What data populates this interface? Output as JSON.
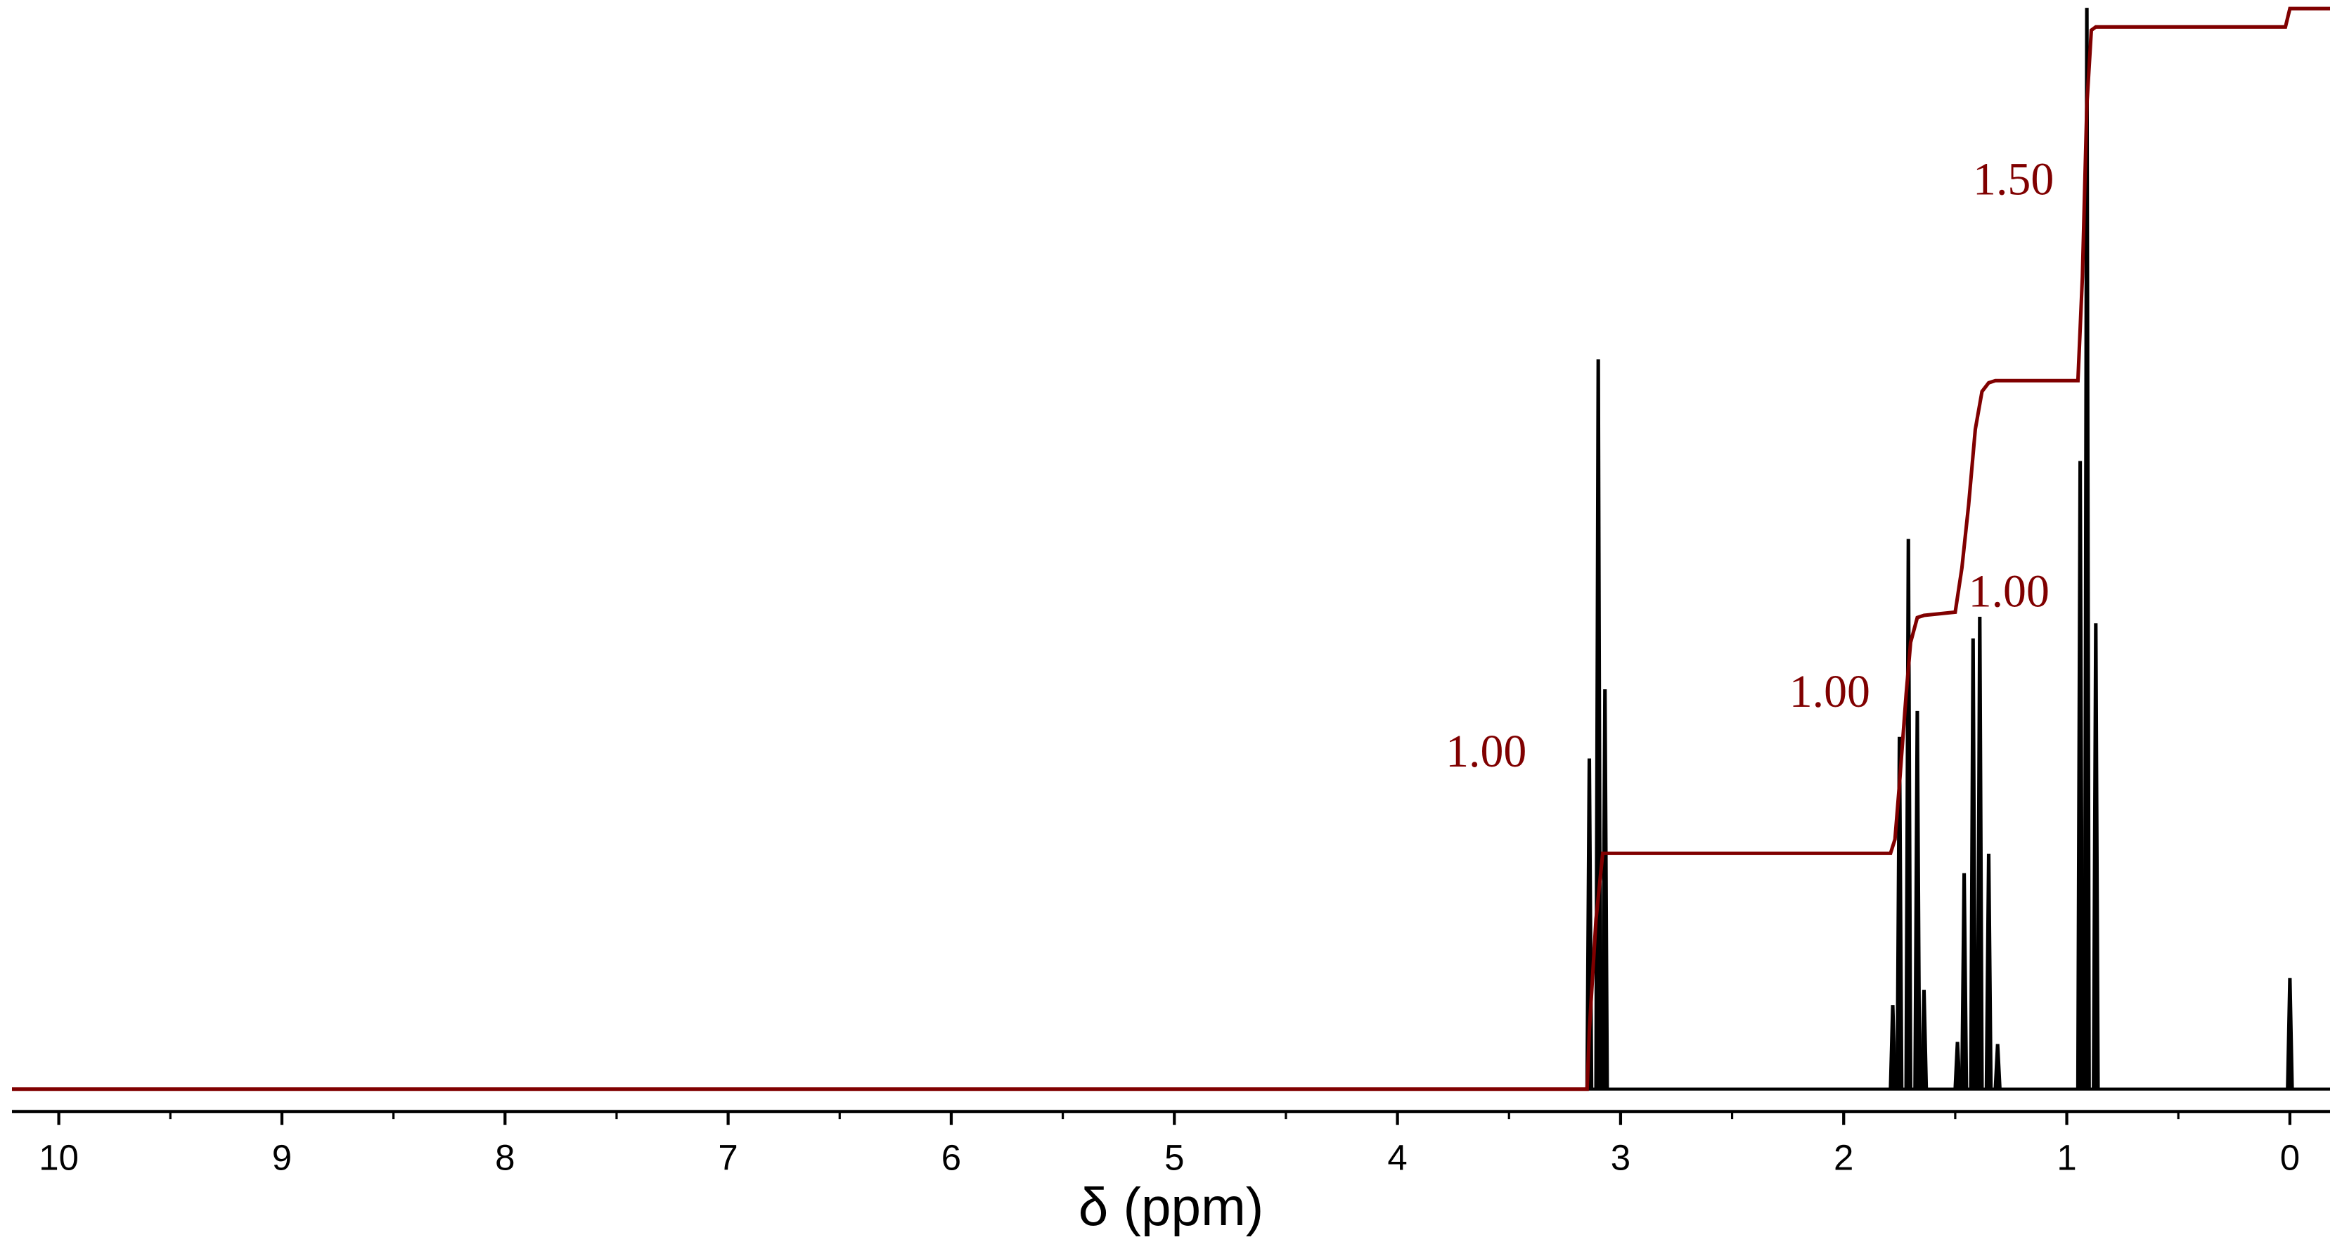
{
  "chart_data": {
    "type": "nmr",
    "xlabel": "δ (ppm)",
    "xlim": [
      10.21,
      -0.18
    ],
    "xticks": [
      10,
      9,
      8,
      7,
      6,
      5,
      4,
      3,
      2,
      1,
      0
    ],
    "xminorticks": [
      9.5,
      8.5,
      7.5,
      6.5,
      5.5,
      4.5,
      3.5,
      2.5,
      1.5,
      0.5
    ],
    "ylim": [
      0,
      100
    ],
    "peaks": {
      "color": "#000000",
      "x": [
        3.14,
        3.1,
        3.07,
        1.78,
        1.75,
        1.71,
        1.67,
        1.64,
        1.49,
        1.46,
        1.42,
        1.39,
        1.35,
        1.31,
        0.94,
        0.91,
        0.87,
        0.0
      ],
      "values": [
        30.5,
        67.4,
        36.9,
        7.7,
        32.5,
        50.8,
        34.9,
        9.1,
        4.3,
        19.9,
        41.6,
        43.6,
        21.7,
        4.1,
        58.0,
        99.9,
        43.0,
        10.2
      ]
    },
    "integral": {
      "color": "#800000",
      "x": [
        10.21,
        3.15,
        3.14,
        3.11,
        3.08,
        1.79,
        1.77,
        1.75,
        1.72,
        1.7,
        1.67,
        1.64,
        1.5,
        1.47,
        1.44,
        1.41,
        1.38,
        1.35,
        1.32,
        0.95,
        0.93,
        0.91,
        0.89,
        0.87,
        0.02,
        0.0,
        -0.18
      ],
      "values": [
        0,
        0,
        5.4,
        15.7,
        21.8,
        21.8,
        23.1,
        28.2,
        36.5,
        41.3,
        43.6,
        43.8,
        44.1,
        48.2,
        54.0,
        61.0,
        64.5,
        65.3,
        65.5,
        65.5,
        75.1,
        91.0,
        97.9,
        98.2,
        98.2,
        99.9,
        99.9
      ]
    },
    "integration_labels": {
      "color": "#800000",
      "values": [
        1,
        1,
        1,
        1.5
      ],
      "value_labels": [
        "1.00",
        "1.00",
        "1.00",
        "1.50"
      ]
    }
  }
}
